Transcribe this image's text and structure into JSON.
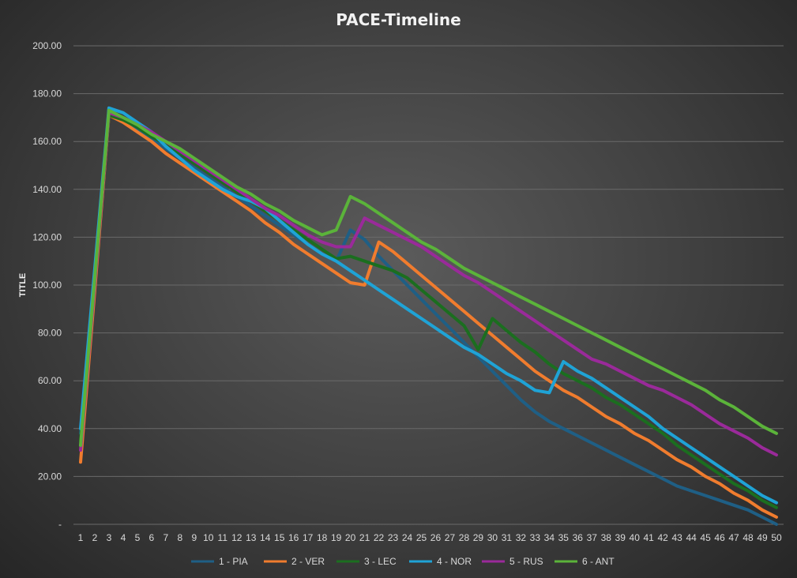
{
  "chart_data": {
    "type": "line",
    "title": "PACE-Timeline",
    "ylabel": "TITLE",
    "xlabel": "",
    "ylim": [
      0,
      200
    ],
    "y_ticks": [
      "-",
      "20.00",
      "40.00",
      "60.00",
      "80.00",
      "100.00",
      "120.00",
      "140.00",
      "160.00",
      "180.00",
      "200.00"
    ],
    "x": [
      1,
      2,
      3,
      4,
      5,
      6,
      7,
      8,
      9,
      10,
      11,
      12,
      13,
      14,
      15,
      16,
      17,
      18,
      19,
      20,
      21,
      22,
      23,
      24,
      25,
      26,
      27,
      28,
      29,
      30,
      31,
      32,
      33,
      34,
      35,
      36,
      37,
      38,
      39,
      40,
      41,
      42,
      43,
      44,
      45,
      46,
      47,
      48,
      49,
      50
    ],
    "grid": true,
    "legend_position": "bottom",
    "series": [
      {
        "name": "1 - PIA",
        "color": "#1f5f85",
        "values": [
          38,
          105,
          172,
          169,
          165,
          161,
          157,
          153,
          149,
          145,
          141,
          137,
          133,
          129,
          125,
          121,
          117,
          113,
          110,
          123,
          119,
          112,
          106,
          100,
          94,
          88,
          82,
          76,
          70,
          64,
          58,
          52,
          47,
          43,
          40,
          37,
          34,
          31,
          28,
          25,
          22,
          19,
          16,
          14,
          12,
          10,
          8,
          6,
          3,
          0
        ]
      },
      {
        "name": "2 - VER",
        "color": "#f07c2e",
        "values": [
          26,
          98,
          171,
          168,
          164,
          160,
          155,
          151,
          147,
          143,
          139,
          135,
          131,
          126,
          122,
          117,
          113,
          109,
          105,
          101,
          100,
          118,
          114,
          109,
          104,
          99,
          94,
          89,
          84,
          79,
          74,
          69,
          64,
          60,
          56,
          53,
          49,
          45,
          42,
          38,
          35,
          31,
          27,
          24,
          20,
          17,
          13,
          10,
          6,
          3
        ]
      },
      {
        "name": "3 - LEC",
        "color": "#1b6e1f",
        "values": [
          35,
          103,
          171,
          169,
          166,
          162,
          159,
          155,
          151,
          147,
          143,
          139,
          135,
          131,
          127,
          123,
          119,
          115,
          111,
          112,
          110,
          108,
          106,
          103,
          98,
          93,
          88,
          83,
          73,
          86,
          81,
          76,
          72,
          67,
          63,
          60,
          57,
          53,
          50,
          46,
          42,
          38,
          33,
          29,
          25,
          21,
          17,
          14,
          10,
          7
        ]
      },
      {
        "name": "4 - NOR",
        "color": "#1fa3d6",
        "values": [
          40,
          107,
          174,
          172,
          168,
          164,
          158,
          153,
          148,
          144,
          140,
          137,
          135,
          132,
          127,
          122,
          117,
          113,
          110,
          106,
          102,
          98,
          94,
          90,
          86,
          82,
          78,
          74,
          71,
          67,
          63,
          60,
          56,
          55,
          68,
          64,
          61,
          57,
          53,
          49,
          45,
          40,
          36,
          32,
          28,
          24,
          20,
          16,
          12,
          9
        ]
      },
      {
        "name": "5 - RUS",
        "color": "#9a2a9a",
        "values": [
          31,
          101,
          172,
          170,
          167,
          164,
          160,
          156,
          152,
          148,
          144,
          140,
          136,
          132,
          129,
          125,
          121,
          118,
          116,
          116,
          128,
          125,
          122,
          119,
          116,
          112,
          108,
          104,
          101,
          97,
          93,
          89,
          85,
          81,
          77,
          73,
          69,
          67,
          64,
          61,
          58,
          56,
          53,
          50,
          46,
          42,
          39,
          36,
          32,
          29
        ]
      },
      {
        "name": "6 - ANT",
        "color": "#5bb33a",
        "values": [
          33,
          103,
          173,
          170,
          167,
          163,
          160,
          157,
          153,
          149,
          145,
          141,
          138,
          134,
          131,
          127,
          124,
          121,
          123,
          137,
          134,
          130,
          126,
          122,
          118,
          115,
          111,
          107,
          104,
          101,
          98,
          95,
          92,
          89,
          86,
          83,
          80,
          77,
          74,
          71,
          68,
          65,
          62,
          59,
          56,
          52,
          49,
          45,
          41,
          38
        ]
      }
    ]
  }
}
